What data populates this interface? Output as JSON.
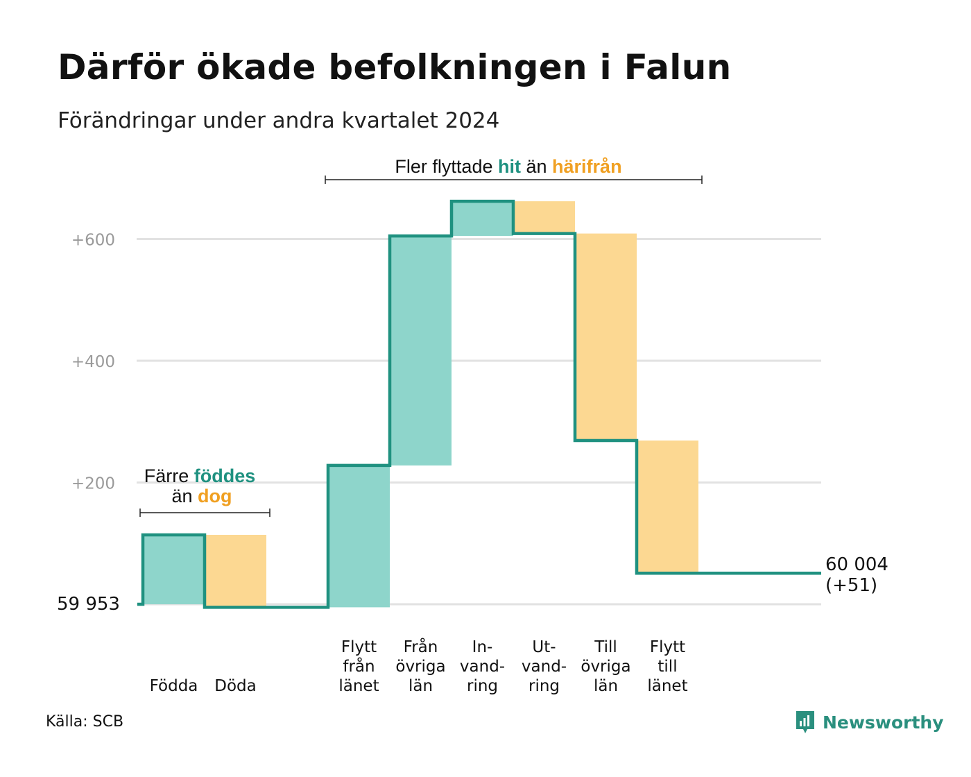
{
  "title": "Därför ökade befolkningen i Falun",
  "subtitle": "Förändringar under andra kvartalet 2024",
  "source": "Källa: SCB",
  "brand": "Newsworthy",
  "colors": {
    "increase_fill": "#8ed5cb",
    "decrease_fill": "#fcd892",
    "line": "#1f9180",
    "hit_text": "#1f9180",
    "harifran_text": "#f0a022",
    "grid": "#e2e2e2"
  },
  "chart_data": {
    "type": "waterfall",
    "start_value": 59953,
    "start_label": "59  953",
    "end_label": "60 004",
    "end_change_label": "(+51)",
    "y_ticks": [
      {
        "value": 200,
        "label": "+200"
      },
      {
        "value": 400,
        "label": "+400"
      },
      {
        "value": 600,
        "label": "+600"
      }
    ],
    "ylim": [
      0,
      650
    ],
    "steps": [
      {
        "lines": [
          "Födda"
        ],
        "from": 0,
        "to": 114,
        "kind": "increase",
        "group": 1
      },
      {
        "lines": [
          "Döda"
        ],
        "from": 114,
        "to": -5,
        "kind": "decrease",
        "group": 1
      },
      {
        "lines": [
          "Flytt",
          "från",
          "länet"
        ],
        "from": -5,
        "to": 228,
        "kind": "increase",
        "group": 2
      },
      {
        "lines": [
          "Från",
          "övriga",
          "län"
        ],
        "from": 228,
        "to": 605,
        "kind": "increase",
        "group": 2
      },
      {
        "lines": [
          "In-",
          "vand-",
          "ring"
        ],
        "from": 605,
        "to": 662,
        "kind": "increase",
        "group": 2
      },
      {
        "lines": [
          "Ut-",
          "vand-",
          "ring"
        ],
        "from": 662,
        "to": 609,
        "kind": "decrease",
        "group": 2
      },
      {
        "lines": [
          "Till",
          "övriga",
          "län"
        ],
        "from": 609,
        "to": 269,
        "kind": "decrease",
        "group": 2
      },
      {
        "lines": [
          "Flytt",
          "till",
          "länet"
        ],
        "from": 269,
        "to": 51,
        "kind": "decrease",
        "group": 2
      }
    ],
    "annotations": {
      "births_deaths": {
        "line1_prefix": "Färre ",
        "line1_highlight": "föddes",
        "line2_prefix": "än ",
        "line2_highlight": "dog"
      },
      "migration": {
        "prefix": "Fler flyttade ",
        "highlight1": "hit",
        "middle": " än ",
        "highlight2": "härifrån"
      }
    },
    "grid": true
  }
}
